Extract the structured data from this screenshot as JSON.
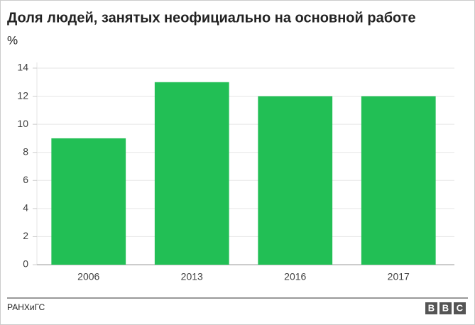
{
  "chart_data": {
    "type": "bar",
    "title": "Доля людей, занятых неофициально на основной работе",
    "subtitle": "%",
    "categories": [
      "2006",
      "2013",
      "2016",
      "2017"
    ],
    "values": [
      9,
      13,
      12,
      12
    ],
    "color": "#22bf55",
    "ylim": [
      0,
      14
    ],
    "yticks": [
      0,
      2,
      4,
      6,
      8,
      10,
      12,
      14
    ],
    "grid": true,
    "source": "РАНХиГС",
    "logo": [
      "B",
      "B",
      "C"
    ]
  }
}
